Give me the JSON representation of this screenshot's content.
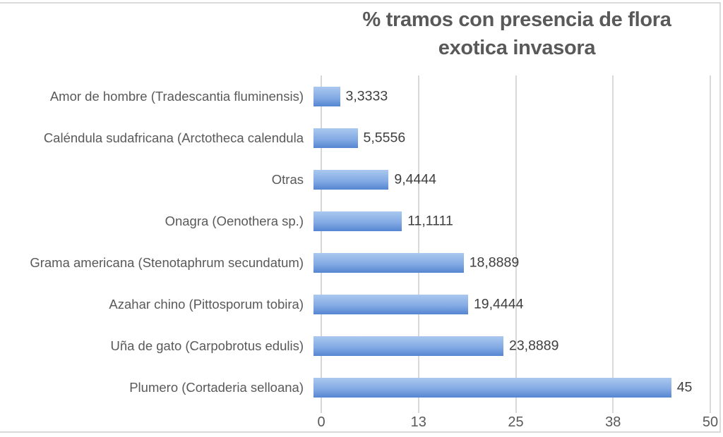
{
  "chart": {
    "title_line1": "% tramos con presencia de flora",
    "title_line2": "exotica invasora"
  },
  "chart_data": {
    "type": "bar",
    "orientation": "horizontal",
    "title": "% tramos con presencia de flora exotica invasora",
    "categories": [
      "Amor de hombre (Tradescantia fluminensis)",
      "Caléndula sudafricana (Arctotheca calendula",
      "Otras",
      "Onagra (Oenothera sp.)",
      "Grama americana (Stenotaphrum secundatum)",
      "Azahar chino (Pittosporum tobira)",
      "Uña de gato (Carpobrotus edulis)",
      "Plumero (Cortaderia selloana)"
    ],
    "values": [
      3.3333,
      5.5556,
      9.4444,
      11.1111,
      18.8889,
      19.4444,
      23.8889,
      45
    ],
    "value_labels": [
      "3,3333",
      "5,5556",
      "9,4444",
      "11,1111",
      "18,8889",
      "19,4444",
      "23,8889",
      "45"
    ],
    "xlabel": "",
    "ylabel": "",
    "xlim": [
      0,
      50
    ],
    "x_ticks": [
      "0",
      "13",
      "25",
      "38",
      "50"
    ],
    "grid": true,
    "legend_position": "none",
    "colors": {
      "bar_gradient_top": "#aac8ef",
      "bar_gradient_mid": "#84abe4",
      "bar_gradient_bottom": "#5585d2",
      "title_text": "#595959",
      "axis_text": "#595959",
      "value_text": "#3f3f3f",
      "gridline": "#d9d9d9"
    }
  }
}
